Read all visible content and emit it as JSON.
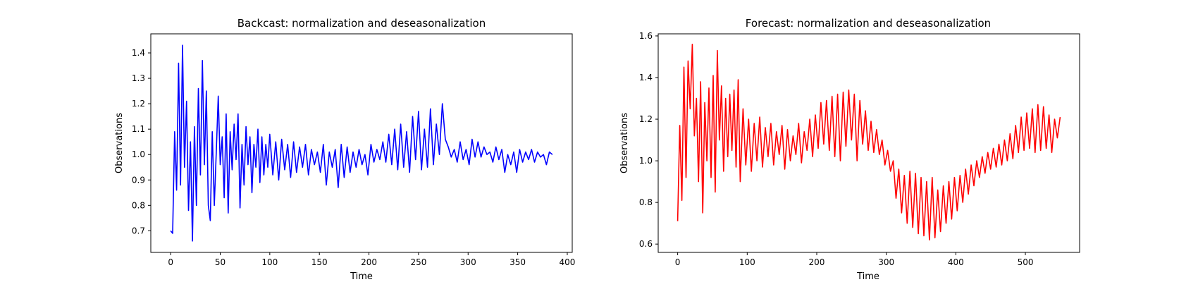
{
  "chart_data": [
    {
      "type": "line",
      "title": "Backcast: normalization and deseasonalization",
      "xlabel": "Time",
      "ylabel": "Observations",
      "xlim": [
        -20,
        405
      ],
      "ylim": [
        0.615,
        1.475
      ],
      "xticks": [
        0,
        50,
        100,
        150,
        200,
        250,
        300,
        350,
        400
      ],
      "yticks": [
        0.7,
        0.8,
        0.9,
        1.0,
        1.1,
        1.2,
        1.3,
        1.4
      ],
      "grid": false,
      "series": [
        {
          "color": "#0000ff",
          "x": [
            0,
            2,
            4,
            6,
            8,
            10,
            12,
            14,
            16,
            18,
            20,
            22,
            24,
            26,
            28,
            30,
            32,
            34,
            36,
            38,
            40,
            42,
            44,
            46,
            48,
            50,
            52,
            54,
            56,
            58,
            60,
            62,
            64,
            66,
            68,
            70,
            72,
            74,
            76,
            78,
            80,
            82,
            84,
            86,
            88,
            90,
            92,
            94,
            96,
            98,
            100,
            103,
            106,
            109,
            112,
            115,
            118,
            121,
            124,
            127,
            130,
            133,
            136,
            139,
            142,
            145,
            148,
            151,
            154,
            157,
            160,
            163,
            166,
            169,
            172,
            175,
            178,
            181,
            184,
            187,
            190,
            193,
            196,
            199,
            202,
            205,
            208,
            211,
            214,
            217,
            220,
            223,
            226,
            229,
            232,
            235,
            238,
            241,
            244,
            247,
            250,
            253,
            256,
            259,
            262,
            265,
            268,
            271,
            274,
            277,
            280,
            283,
            286,
            289,
            292,
            295,
            298,
            301,
            304,
            307,
            310,
            313,
            316,
            319,
            322,
            325,
            328,
            331,
            334,
            337,
            340,
            343,
            346,
            349,
            352,
            355,
            358,
            361,
            364,
            367,
            370,
            373,
            376,
            379,
            382,
            385
          ],
          "y": [
            0.7,
            0.69,
            1.09,
            0.86,
            1.36,
            0.88,
            1.43,
            0.95,
            1.21,
            0.78,
            1.05,
            0.66,
            1.11,
            0.8,
            1.26,
            0.92,
            1.37,
            0.96,
            1.25,
            0.8,
            0.74,
            1.09,
            0.8,
            1.01,
            1.23,
            0.96,
            1.07,
            0.83,
            1.16,
            0.77,
            1.09,
            0.94,
            1.12,
            0.98,
            1.16,
            0.79,
            1.04,
            0.88,
            1.11,
            0.96,
            1.07,
            0.85,
            1.04,
            0.95,
            1.1,
            0.89,
            1.07,
            0.92,
            1.04,
            0.95,
            1.08,
            0.92,
            1.05,
            0.9,
            1.06,
            0.94,
            1.04,
            0.91,
            1.05,
            0.93,
            1.03,
            0.95,
            1.04,
            0.92,
            1.02,
            0.96,
            1.01,
            0.93,
            1.04,
            0.88,
            1.01,
            0.95,
            1.02,
            0.87,
            1.04,
            0.91,
            1.03,
            0.93,
            1.01,
            0.95,
            1.02,
            0.96,
            1.0,
            0.92,
            1.04,
            0.97,
            1.02,
            0.98,
            1.05,
            0.97,
            1.08,
            0.96,
            1.1,
            0.94,
            1.12,
            0.95,
            1.09,
            0.93,
            1.15,
            0.98,
            1.17,
            0.94,
            1.1,
            0.95,
            1.18,
            0.96,
            1.12,
            1.0,
            1.2,
            1.06,
            1.03,
            0.99,
            1.02,
            0.97,
            1.05,
            0.98,
            1.02,
            0.96,
            1.06,
            0.99,
            1.05,
            0.99,
            1.03,
            1.0,
            1.01,
            0.97,
            1.03,
            0.98,
            1.02,
            0.93,
            1.0,
            0.96,
            1.01,
            0.93,
            1.02,
            0.97,
            1.01,
            0.98,
            1.02,
            0.97,
            1.01,
            0.99,
            1.0,
            0.96,
            1.01,
            1.0
          ]
        }
      ]
    },
    {
      "type": "line",
      "title": "Forecast: normalization and deseasonalization",
      "xlabel": "Time",
      "ylabel": "Observations",
      "xlim": [
        -28,
        578
      ],
      "ylim": [
        0.56,
        1.61
      ],
      "xticks": [
        0,
        100,
        200,
        300,
        400,
        500
      ],
      "yticks": [
        0.6,
        0.8,
        1.0,
        1.2,
        1.4,
        1.6
      ],
      "grid": false,
      "series": [
        {
          "color": "#ff0000",
          "x": [
            0,
            3,
            6,
            9,
            12,
            15,
            18,
            21,
            24,
            27,
            30,
            33,
            36,
            39,
            42,
            45,
            48,
            51,
            54,
            57,
            60,
            63,
            66,
            69,
            72,
            75,
            78,
            81,
            84,
            87,
            90,
            94,
            98,
            102,
            106,
            110,
            114,
            118,
            122,
            126,
            130,
            134,
            138,
            142,
            146,
            150,
            154,
            158,
            162,
            166,
            170,
            174,
            178,
            182,
            186,
            190,
            194,
            198,
            202,
            206,
            210,
            214,
            218,
            222,
            226,
            230,
            234,
            238,
            242,
            246,
            250,
            254,
            258,
            262,
            266,
            270,
            274,
            278,
            282,
            286,
            290,
            294,
            298,
            302,
            306,
            310,
            314,
            318,
            322,
            326,
            330,
            334,
            338,
            342,
            346,
            350,
            354,
            358,
            362,
            366,
            370,
            374,
            378,
            382,
            386,
            390,
            394,
            398,
            402,
            406,
            410,
            414,
            418,
            422,
            426,
            430,
            434,
            438,
            442,
            446,
            450,
            454,
            458,
            462,
            466,
            470,
            474,
            478,
            482,
            486,
            490,
            494,
            498,
            502,
            506,
            510,
            514,
            518,
            522,
            526,
            530,
            534,
            538,
            542,
            546,
            550
          ],
          "y": [
            0.71,
            1.17,
            0.81,
            1.45,
            0.92,
            1.48,
            1.25,
            1.56,
            1.12,
            1.3,
            0.9,
            1.38,
            0.75,
            1.28,
            1.0,
            1.35,
            0.92,
            1.41,
            0.85,
            1.53,
            1.1,
            1.36,
            0.95,
            1.3,
            1.02,
            1.32,
            1.05,
            1.34,
            0.97,
            1.39,
            0.9,
            1.25,
            0.98,
            1.2,
            0.95,
            1.18,
            1.0,
            1.21,
            0.97,
            1.16,
            1.02,
            1.18,
            0.98,
            1.14,
            1.03,
            1.17,
            0.96,
            1.15,
            1.0,
            1.12,
            1.03,
            1.18,
            0.99,
            1.14,
            1.05,
            1.2,
            1.02,
            1.22,
            1.06,
            1.28,
            1.08,
            1.29,
            1.05,
            1.31,
            1.02,
            1.32,
            1.0,
            1.33,
            1.07,
            1.34,
            1.1,
            1.32,
            1.0,
            1.29,
            1.08,
            1.24,
            1.05,
            1.19,
            1.04,
            1.15,
            1.03,
            1.1,
            0.98,
            1.05,
            0.95,
            1.0,
            0.82,
            0.96,
            0.75,
            0.93,
            0.7,
            0.95,
            0.68,
            0.94,
            0.65,
            0.92,
            0.64,
            0.9,
            0.62,
            0.92,
            0.63,
            0.86,
            0.66,
            0.88,
            0.7,
            0.9,
            0.72,
            0.92,
            0.76,
            0.93,
            0.8,
            0.96,
            0.84,
            0.98,
            0.88,
            1.0,
            0.92,
            1.02,
            0.94,
            1.04,
            0.96,
            1.06,
            0.97,
            1.08,
            0.98,
            1.1,
            1.0,
            1.13,
            1.01,
            1.17,
            1.04,
            1.21,
            1.05,
            1.23,
            1.06,
            1.25,
            1.04,
            1.27,
            1.05,
            1.26,
            1.06,
            1.22,
            1.04,
            1.2,
            1.11,
            1.21
          ]
        }
      ]
    }
  ]
}
